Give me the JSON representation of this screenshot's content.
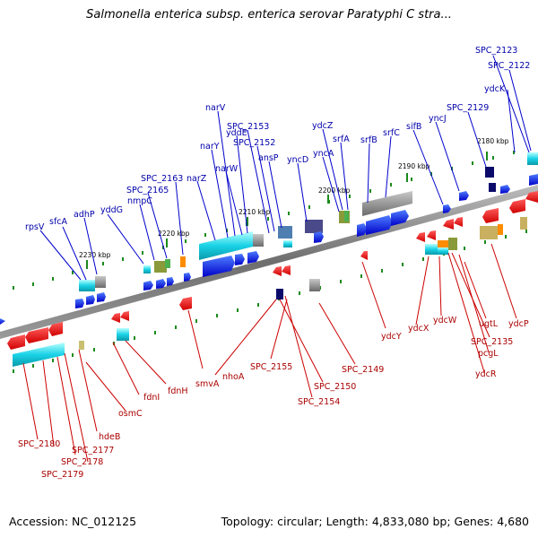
{
  "title": "Salmonella enterica subsp. enterica serovar Paratyphi C stra...",
  "footer": {
    "accession": "Accession: NC_012125",
    "summary": "Topology: circular; Length: 4,833,080 bp; Genes: 4,680"
  },
  "colors": {
    "forward_gene": "#0000ee",
    "reverse_gene": "#ee0000",
    "forward_label": "#0000aa",
    "reverse_label": "#aa0000",
    "backbone": "#7a7a7a",
    "tick": "#1a8a1a"
  },
  "kbp_ticks": [
    "2230 kbp",
    "2220 kbp",
    "2210 kbp",
    "2200 kbp",
    "2190 kbp",
    "2180 kbp"
  ],
  "top_labels": [
    "rpsV",
    "sfcA",
    "adhP",
    "yddG",
    "nmpC",
    "SPC_2165",
    "SPC_2163",
    "narZ",
    "narY",
    "narV",
    "narW",
    "yddE",
    "SPC_2153",
    "SPC_2152",
    "ansP",
    "yncD",
    "yncA",
    "ydcZ",
    "srfA",
    "srfB",
    "srfC",
    "sifB",
    "yncJ",
    "SPC_2129",
    "ydcK",
    "SPC_2123",
    "SPC_2122"
  ],
  "bottom_labels": [
    "SPC_2180",
    "SPC_2177",
    "SPC_2178",
    "SPC_2179",
    "hdeB",
    "osmC",
    "fdnI",
    "fdnH",
    "smvA",
    "nhoA",
    "SPC_2155",
    "SPC_2150",
    "SPC_2154",
    "SPC_2149",
    "ydcY",
    "ydcX",
    "ydcW",
    "ugtL",
    "SPC_2135",
    "pcgL",
    "ydcR",
    "ydcP"
  ]
}
